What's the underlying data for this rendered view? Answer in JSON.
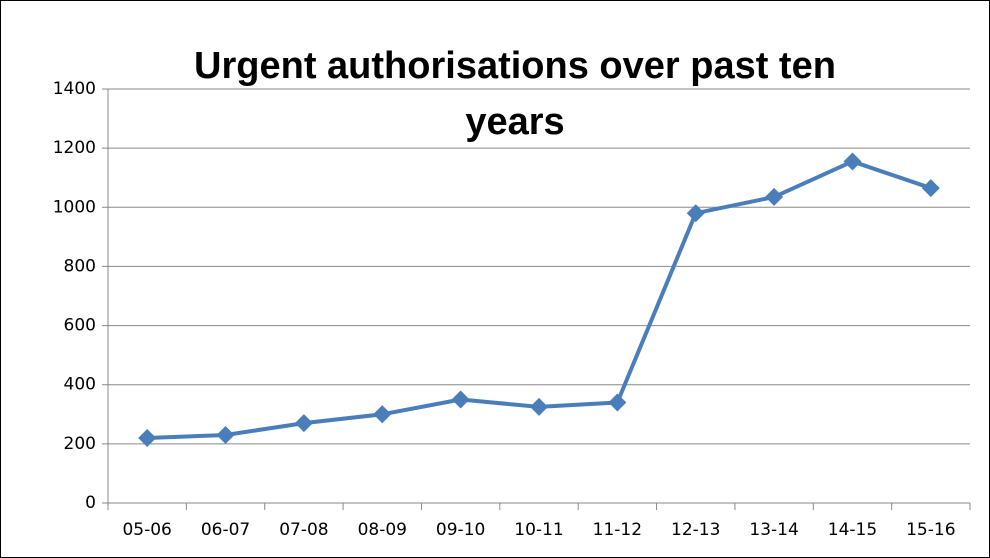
{
  "chart_data": {
    "type": "line",
    "title": "Urgent authorisations over past ten years",
    "categories": [
      "05-06",
      "06-07",
      "07-08",
      "08-09",
      "09-10",
      "10-11",
      "11-12",
      "12-13",
      "13-14",
      "14-15",
      "15-16"
    ],
    "series": [
      {
        "name": "Urgent authorisations",
        "color": "#4a7ebb",
        "values": [
          220,
          230,
          270,
          300,
          350,
          325,
          340,
          980,
          1035,
          1155,
          1065
        ]
      }
    ],
    "ylim": [
      0,
      1400
    ],
    "yticks": [
      0,
      200,
      400,
      600,
      800,
      1000,
      1200,
      1400
    ],
    "grid": true
  }
}
